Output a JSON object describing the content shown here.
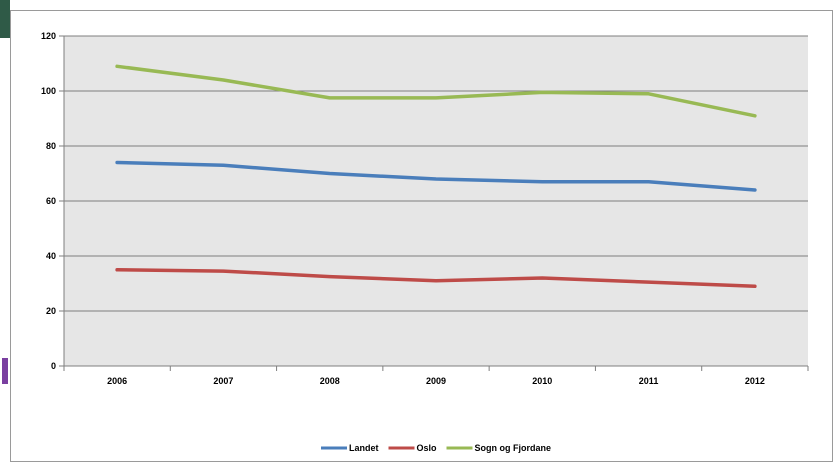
{
  "chart_data": {
    "type": "line",
    "title": "",
    "xlabel": "",
    "ylabel": "",
    "categories": [
      "2006",
      "2007",
      "2008",
      "2009",
      "2010",
      "2011",
      "2012"
    ],
    "ylim": [
      0,
      120
    ],
    "yticks": [
      0,
      20,
      40,
      60,
      80,
      100,
      120
    ],
    "grid": "horizontal",
    "legend_position": "bottom",
    "plot_background": "#e6e6e6",
    "series": [
      {
        "name": "Landet",
        "color": "#4a7ebb",
        "values": [
          74,
          73,
          70,
          68,
          67,
          67,
          64
        ]
      },
      {
        "name": "Oslo",
        "color": "#be4b48",
        "values": [
          35,
          34.5,
          32.5,
          31,
          32,
          30.5,
          29
        ]
      },
      {
        "name": "Sogn og Fjordane",
        "color": "#98b954",
        "values": [
          109,
          104,
          97.5,
          97.5,
          99.5,
          99,
          91
        ]
      }
    ]
  }
}
